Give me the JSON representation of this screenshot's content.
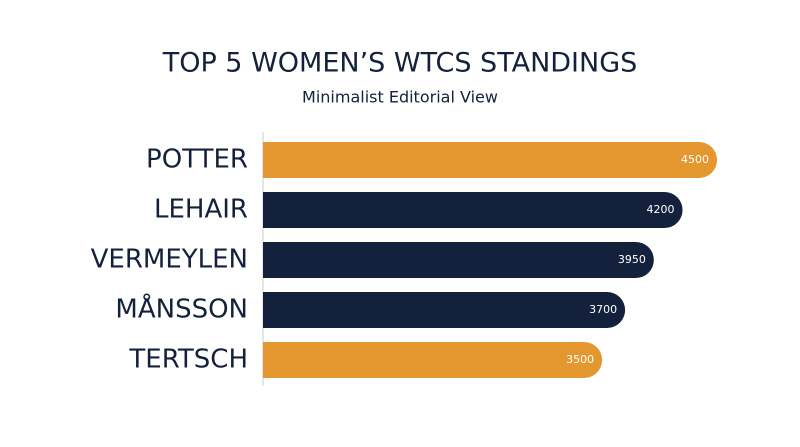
{
  "chart_data": {
    "type": "bar",
    "orientation": "horizontal",
    "title": "TOP 5 WOMEN’S WTCS STANDINGS",
    "subtitle": "Minimalist Editorial View",
    "categories": [
      "POTTER",
      "LEHAIR",
      "VERMEYLEN",
      "MÅNSSON",
      "TERTSCH"
    ],
    "values": [
      4500,
      4200,
      3950,
      3700,
      3500
    ],
    "colors": [
      "#e5972f",
      "#13213c",
      "#13213c",
      "#13213c",
      "#e5972f"
    ],
    "xlim": [
      0,
      4700
    ]
  }
}
